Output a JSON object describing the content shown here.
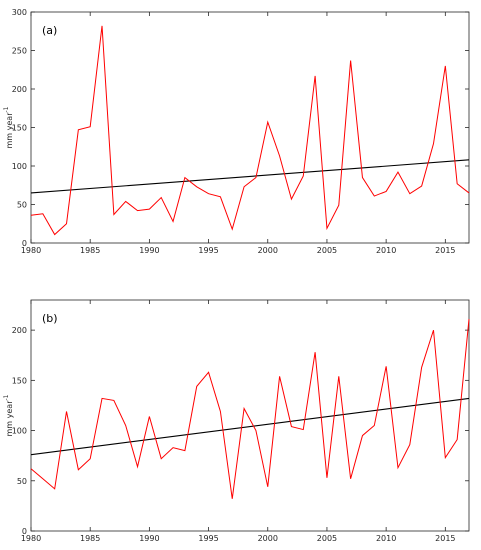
{
  "chart_data": [
    {
      "type": "line",
      "panel_label": "(a)",
      "ylabel": "mm year",
      "ylabel_exp": "-1",
      "xlim": [
        1980,
        2017
      ],
      "ylim": [
        0,
        300
      ],
      "xticks": [
        "1980",
        "1985",
        "1990",
        "1995",
        "2000",
        "2005",
        "2010",
        "2015"
      ],
      "yticks": [
        "0",
        "50",
        "100",
        "150",
        "200",
        "250",
        "300"
      ],
      "grid": false,
      "colors": {
        "series": "#ff0000",
        "trend": "#000000"
      },
      "x": [
        1980,
        1981,
        1982,
        1983,
        1984,
        1985,
        1986,
        1987,
        1988,
        1989,
        1990,
        1991,
        1992,
        1993,
        1994,
        1995,
        1996,
        1997,
        1998,
        1999,
        2000,
        2001,
        2002,
        2003,
        2004,
        2005,
        2006,
        2007,
        2008,
        2009,
        2010,
        2011,
        2012,
        2013,
        2014,
        2015,
        2016,
        2017
      ],
      "series": [
        {
          "values": [
            36,
            38,
            11,
            25,
            147,
            151,
            282,
            37,
            54,
            42,
            44,
            59,
            28,
            85,
            73,
            64,
            60,
            18,
            73,
            85,
            157,
            113,
            57,
            87,
            217,
            19,
            49,
            237,
            85,
            61,
            67,
            92,
            64,
            74,
            129,
            230,
            77,
            65
          ]
        }
      ],
      "trend": {
        "x": [
          1980,
          2017
        ],
        "y": [
          65,
          108
        ]
      }
    },
    {
      "type": "line",
      "panel_label": "(b)",
      "ylabel": "mm year",
      "ylabel_exp": "-1",
      "xlim": [
        1980,
        2017
      ],
      "ylim": [
        0,
        230
      ],
      "xticks": [
        "1980",
        "1985",
        "1990",
        "1995",
        "2000",
        "2005",
        "2010",
        "2015"
      ],
      "yticks": [
        "0",
        "50",
        "100",
        "150",
        "200"
      ],
      "grid": false,
      "colors": {
        "series": "#ff0000",
        "trend": "#000000"
      },
      "x": [
        1980,
        1981,
        1982,
        1983,
        1984,
        1985,
        1986,
        1987,
        1988,
        1989,
        1990,
        1991,
        1992,
        1993,
        1994,
        1995,
        1996,
        1997,
        1998,
        1999,
        2000,
        2001,
        2002,
        2003,
        2004,
        2005,
        2006,
        2007,
        2008,
        2009,
        2010,
        2011,
        2012,
        2013,
        2014,
        2015,
        2016,
        2017
      ],
      "series": [
        {
          "values": [
            62,
            52,
            42,
            119,
            61,
            72,
            132,
            130,
            105,
            64,
            114,
            72,
            83,
            80,
            144,
            158,
            119,
            32,
            122,
            100,
            44,
            154,
            104,
            101,
            178,
            53,
            154,
            52,
            95,
            105,
            164,
            63,
            86,
            163,
            200,
            73,
            91,
            211
          ]
        }
      ],
      "trend": {
        "x": [
          1980,
          2017
        ],
        "y": [
          76,
          132
        ]
      }
    }
  ]
}
